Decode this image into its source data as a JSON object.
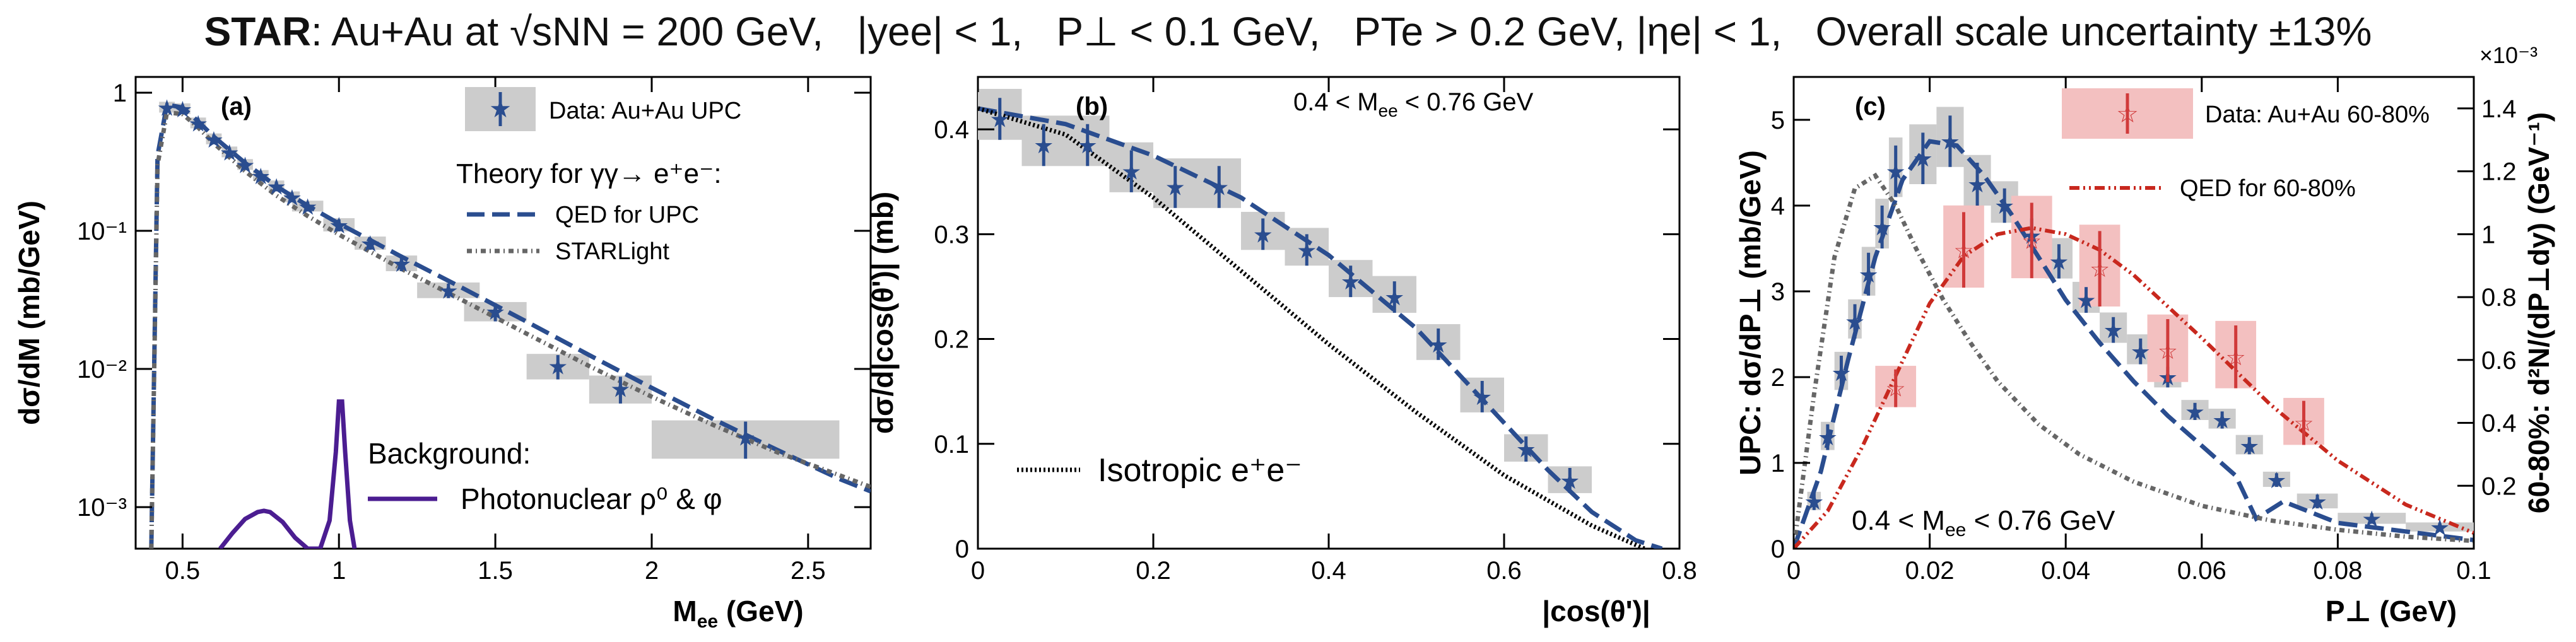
{
  "header": {
    "title": "STAR: Au+Au at √sNN = 200 GeV,  |yee| < 1,  P⊥ < 0.1 GeV,  PTe > 0.2 GeV, |ηe| < 1,  Overall scale uncertainty ±13%",
    "experiment": "STAR",
    "system": ": Au+Au at ",
    "sqrt_s": "√sNN = 200 GeV,",
    "cut_y": "|yee| < 1,",
    "cut_pt": "P⊥ < 0.1 GeV,",
    "cut_pte": "PTe > 0.2 GeV,",
    "cut_eta": "|ηe| < 1,",
    "scale": "Overall scale uncertainty ±13%"
  },
  "colors": {
    "data_blue": "#2a4d8f",
    "theory_blue": "#2a4d8f",
    "starlight": "#666666",
    "photonuclear": "#4b1d91",
    "data_red": "#d03a3a",
    "qed_red": "#c8281e",
    "box_gray": "#cccccc",
    "box_red": "#f3c0c0"
  },
  "chart_data": [
    {
      "id": "a",
      "type": "scatter",
      "panel_label": "(a)",
      "xlabel": "Mee (GeV)",
      "xlabel_main": "M",
      "xlabel_sub": "ee",
      "xlabel_unit": " (GeV)",
      "ylabel": "dσ/dM (mb/GeV)",
      "xlim": [
        0.35,
        2.7
      ],
      "ylim": [
        0.0005,
        1.3
      ],
      "yscale": "log",
      "x_ticks": [
        0.5,
        1,
        1.5,
        2,
        2.5
      ],
      "x_tick_labels": [
        "0.5",
        "1",
        "1.5",
        "2",
        "2.5"
      ],
      "y_ticks": [
        0.001,
        0.01,
        0.1,
        1
      ],
      "y_tick_labels": [
        "10⁻³",
        "10⁻²",
        "10⁻¹",
        "1"
      ],
      "legend": [
        "Data: Au+Au UPC",
        "Theory for γγ→ e⁺e⁻:",
        "QED for UPC",
        "STARLight"
      ],
      "bg_legend_title": "Background:",
      "bg_legend_item": "Photonuclear ρ⁰ & φ",
      "series": [
        {
          "name": "Data: Au+Au UPC",
          "kind": "data",
          "x": [
            0.45,
            0.5,
            0.55,
            0.6,
            0.65,
            0.7,
            0.75,
            0.8,
            0.85,
            0.9,
            1.0,
            1.1,
            1.2,
            1.35,
            1.5,
            1.7,
            1.9,
            2.3
          ],
          "y": [
            0.78,
            0.76,
            0.6,
            0.46,
            0.37,
            0.3,
            0.25,
            0.21,
            0.175,
            0.15,
            0.11,
            0.081,
            0.058,
            0.037,
            0.026,
            0.0105,
            0.0072,
            0.0032
          ],
          "xerr": [
            0.025,
            0.025,
            0.025,
            0.025,
            0.025,
            0.025,
            0.025,
            0.025,
            0.025,
            0.05,
            0.05,
            0.05,
            0.05,
            0.1,
            0.1,
            0.1,
            0.1,
            0.3
          ],
          "yerr_frac": [
            0.08,
            0.08,
            0.08,
            0.08,
            0.08,
            0.08,
            0.08,
            0.08,
            0.08,
            0.08,
            0.1,
            0.1,
            0.12,
            0.12,
            0.15,
            0.2,
            0.22,
            0.3
          ]
        },
        {
          "name": "QED for UPC",
          "kind": "dash",
          "x": [
            0.4,
            0.42,
            0.45,
            0.5,
            0.55,
            0.6,
            0.7,
            0.8,
            0.9,
            1.0,
            1.2,
            1.4,
            1.6,
            1.8,
            2.0,
            2.2,
            2.4,
            2.6,
            2.7
          ],
          "y": [
            0.0005,
            0.35,
            0.82,
            0.78,
            0.62,
            0.48,
            0.31,
            0.21,
            0.152,
            0.113,
            0.065,
            0.038,
            0.022,
            0.0126,
            0.0073,
            0.0043,
            0.0026,
            0.0016,
            0.0013
          ]
        },
        {
          "name": "STARLight",
          "kind": "dot",
          "x": [
            0.4,
            0.42,
            0.45,
            0.5,
            0.55,
            0.6,
            0.7,
            0.8,
            0.9,
            1.0,
            1.2,
            1.4,
            1.6,
            1.8,
            2.0,
            2.2,
            2.4,
            2.6,
            2.7
          ],
          "y": [
            0.0005,
            0.3,
            0.72,
            0.7,
            0.56,
            0.43,
            0.27,
            0.18,
            0.128,
            0.094,
            0.053,
            0.031,
            0.018,
            0.0105,
            0.0063,
            0.0039,
            0.0025,
            0.0017,
            0.0014
          ]
        },
        {
          "name": "Photonuclear ρ⁰ & φ",
          "kind": "solid-purple",
          "x": [
            0.62,
            0.66,
            0.7,
            0.74,
            0.76,
            0.78,
            0.82,
            0.86,
            0.9,
            0.94,
            0.97,
            0.99,
            1.0,
            1.01,
            1.02,
            1.035,
            1.05
          ],
          "y": [
            0.0005,
            0.00065,
            0.00082,
            0.00092,
            0.00094,
            0.00092,
            0.00078,
            0.0006,
            0.0005,
            0.0005,
            0.0008,
            0.0025,
            0.0058,
            0.0058,
            0.0025,
            0.0008,
            0.0005
          ]
        }
      ]
    },
    {
      "id": "b",
      "type": "scatter",
      "panel_label": "(b)",
      "annotation": "0.4 < Mee < 0.76 GeV",
      "annot_pre": "0.4 < M",
      "annot_sub": "ee",
      "annot_post": " < 0.76 GeV",
      "xlabel": "|cos(θ')|",
      "ylabel": "dσ/d|cos(θ')| (mb)",
      "xlim": [
        0,
        0.8
      ],
      "ylim": [
        0,
        0.45
      ],
      "x_ticks": [
        0,
        0.2,
        0.4,
        0.6,
        0.8
      ],
      "x_tick_labels": [
        "0",
        "0.2",
        "0.4",
        "0.6",
        "0.8"
      ],
      "y_ticks": [
        0,
        0.1,
        0.2,
        0.3,
        0.4
      ],
      "y_tick_labels": [
        "0",
        "0.1",
        "0.2",
        "0.3",
        "0.4"
      ],
      "legend": [
        "Isotropic e⁺e⁻"
      ],
      "series": [
        {
          "name": "Data: Au+Au UPC",
          "kind": "data",
          "x": [
            0.025,
            0.075,
            0.125,
            0.175,
            0.225,
            0.275,
            0.325,
            0.375,
            0.425,
            0.475,
            0.525,
            0.575,
            0.625,
            0.675
          ],
          "y": [
            0.41,
            0.385,
            0.385,
            0.36,
            0.345,
            0.345,
            0.3,
            0.285,
            0.255,
            0.24,
            0.195,
            0.145,
            0.095,
            0.065
          ],
          "xerr": [
            0.025,
            0.025,
            0.025,
            0.025,
            0.025,
            0.025,
            0.025,
            0.025,
            0.025,
            0.025,
            0.025,
            0.025,
            0.025,
            0.025
          ],
          "yerr": [
            0.02,
            0.02,
            0.02,
            0.02,
            0.02,
            0.02,
            0.015,
            0.015,
            0.015,
            0.015,
            0.015,
            0.015,
            0.012,
            0.012
          ]
        },
        {
          "name": "QED for UPC",
          "kind": "dash",
          "x": [
            0,
            0.1,
            0.2,
            0.3,
            0.4,
            0.5,
            0.55,
            0.6,
            0.65,
            0.7,
            0.75,
            0.78
          ],
          "y": [
            0.42,
            0.405,
            0.375,
            0.335,
            0.28,
            0.21,
            0.165,
            0.12,
            0.075,
            0.035,
            0.008,
            0.0
          ]
        },
        {
          "name": "Isotropic e⁺e⁻",
          "kind": "dot-black",
          "x": [
            0,
            0.1,
            0.2,
            0.3,
            0.4,
            0.5,
            0.6,
            0.7,
            0.76
          ],
          "y": [
            0.42,
            0.395,
            0.335,
            0.265,
            0.195,
            0.13,
            0.07,
            0.022,
            0.0
          ]
        }
      ]
    },
    {
      "id": "c",
      "type": "scatter",
      "panel_label": "(c)",
      "annotation": "0.4 < Mee < 0.76 GeV",
      "annot_pre": "0.4 < M",
      "annot_sub": "ee",
      "annot_post": " < 0.76 GeV",
      "xlabel": "P⊥ (GeV)",
      "xlabel_main": "P",
      "xlabel_unit": "⊥ (GeV)",
      "ylabel": "UPC: dσ/dP⊥ (mb/GeV)",
      "ylabel_right": "60-80%: d²N/(dP⊥dy) (GeV⁻¹)",
      "right_exponent": "×10⁻³",
      "xlim": [
        0,
        0.1
      ],
      "ylim": [
        0,
        5.5
      ],
      "ylim_right": [
        0,
        1.5
      ],
      "x_ticks": [
        0,
        0.02,
        0.04,
        0.06,
        0.08,
        0.1
      ],
      "x_tick_labels": [
        "0",
        "0.02",
        "0.04",
        "0.06",
        "0.08",
        "0.1"
      ],
      "y_ticks": [
        0,
        1,
        2,
        3,
        4,
        5
      ],
      "y_tick_labels": [
        "0",
        "1",
        "2",
        "3",
        "4",
        "5"
      ],
      "y_ticks_right": [
        0.2,
        0.4,
        0.6,
        0.8,
        1,
        1.2,
        1.4
      ],
      "y_tick_labels_right": [
        "0.2",
        "0.4",
        "0.6",
        "0.8",
        "1",
        "1.2",
        "1.4"
      ],
      "legend": [
        "Data: Au+Au 60-80%",
        "QED for 60-80%"
      ],
      "series": [
        {
          "name": "Data: Au+Au UPC",
          "kind": "data",
          "x": [
            0.003,
            0.005,
            0.007,
            0.009,
            0.011,
            0.013,
            0.015,
            0.019,
            0.023,
            0.027,
            0.031,
            0.035,
            0.039,
            0.043,
            0.047,
            0.051,
            0.055,
            0.059,
            0.063,
            0.067,
            0.071,
            0.077,
            0.085,
            0.095
          ],
          "y": [
            0.55,
            1.3,
            2.05,
            2.65,
            3.2,
            3.75,
            4.4,
            4.55,
            4.75,
            4.25,
            4.0,
            3.65,
            3.35,
            2.9,
            2.55,
            2.3,
            2.0,
            1.6,
            1.5,
            1.2,
            0.8,
            0.55,
            0.35,
            0.25
          ],
          "xerr": [
            0.001,
            0.001,
            0.001,
            0.001,
            0.001,
            0.001,
            0.001,
            0.002,
            0.002,
            0.002,
            0.002,
            0.002,
            0.002,
            0.002,
            0.002,
            0.002,
            0.002,
            0.002,
            0.002,
            0.002,
            0.002,
            0.003,
            0.005,
            0.005
          ],
          "yerr": [
            0.1,
            0.15,
            0.2,
            0.2,
            0.25,
            0.25,
            0.3,
            0.3,
            0.3,
            0.25,
            0.2,
            0.2,
            0.2,
            0.15,
            0.15,
            0.15,
            0.12,
            0.1,
            0.1,
            0.1,
            0.08,
            0.08,
            0.06,
            0.05
          ]
        },
        {
          "name": "QED for UPC",
          "kind": "dash",
          "x": [
            0,
            0.004,
            0.008,
            0.012,
            0.016,
            0.02,
            0.024,
            0.028,
            0.032,
            0.036,
            0.04,
            0.045,
            0.05,
            0.055,
            0.06,
            0.065,
            0.068,
            0.072,
            0.08,
            0.09,
            0.1
          ],
          "y": [
            0,
            0.9,
            2.2,
            3.4,
            4.3,
            4.75,
            4.7,
            4.35,
            3.9,
            3.4,
            2.9,
            2.4,
            1.95,
            1.55,
            1.2,
            0.85,
            0.35,
            0.55,
            0.3,
            0.2,
            0.1
          ]
        },
        {
          "name": "STARLight",
          "kind": "dot",
          "x": [
            0,
            0.003,
            0.006,
            0.009,
            0.012,
            0.015,
            0.018,
            0.022,
            0.026,
            0.03,
            0.036,
            0.042,
            0.05,
            0.06,
            0.07,
            0.08,
            0.09,
            0.1
          ],
          "y": [
            0,
            1.8,
            3.4,
            4.2,
            4.35,
            4.0,
            3.5,
            2.9,
            2.4,
            1.95,
            1.45,
            1.1,
            0.78,
            0.5,
            0.33,
            0.22,
            0.14,
            0.09
          ]
        },
        {
          "name": "Data: Au+Au 60-80%",
          "kind": "data-red",
          "axis": "right",
          "x": [
            0.015,
            0.025,
            0.035,
            0.045,
            0.055,
            0.065,
            0.075
          ],
          "y": [
            0.51,
            0.95,
            0.98,
            0.89,
            0.63,
            0.61,
            0.4
          ],
          "xerr": [
            0.003,
            0.003,
            0.003,
            0.003,
            0.003,
            0.003,
            0.003
          ],
          "yerr": [
            0.06,
            0.12,
            0.12,
            0.12,
            0.1,
            0.1,
            0.07
          ]
        },
        {
          "name": "QED for 60-80%",
          "kind": "dashdot-red",
          "axis": "right",
          "x": [
            0,
            0.005,
            0.01,
            0.015,
            0.02,
            0.025,
            0.03,
            0.035,
            0.04,
            0.045,
            0.05,
            0.06,
            0.07,
            0.08,
            0.09,
            0.1
          ],
          "y": [
            0,
            0.12,
            0.32,
            0.55,
            0.78,
            0.93,
            1.0,
            1.02,
            1.0,
            0.95,
            0.87,
            0.67,
            0.46,
            0.28,
            0.14,
            0.05
          ]
        }
      ]
    }
  ]
}
